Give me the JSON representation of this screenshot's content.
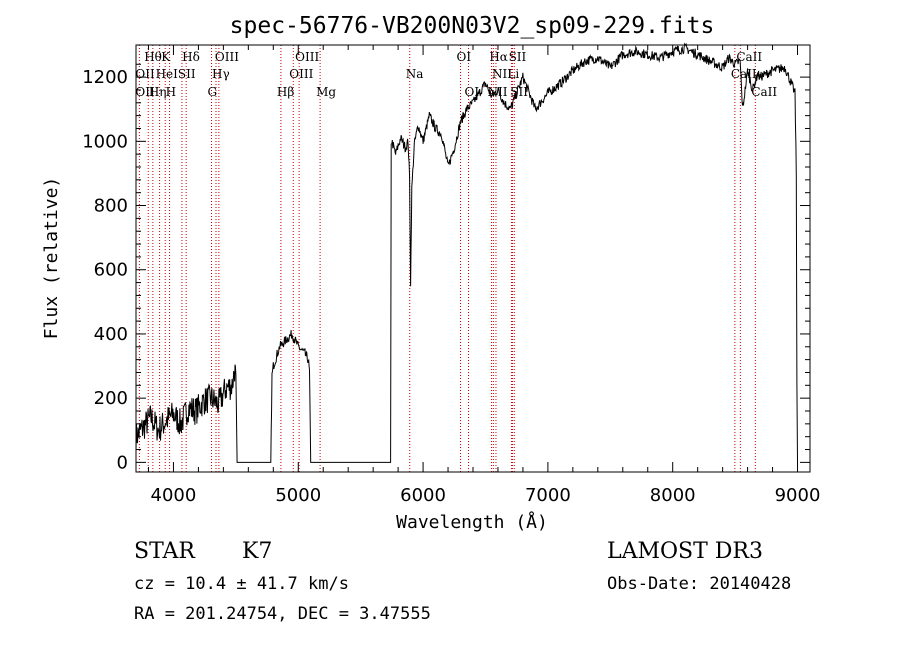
{
  "chart_data": {
    "type": "line",
    "title": "spec-56776-VB200N03V2_sp09-229.fits",
    "xlabel": "Wavelength (Å)",
    "ylabel": "Flux (relative)",
    "xlim": [
      3700,
      9100
    ],
    "ylim": [
      -30,
      1300
    ],
    "x_ticks": [
      4000,
      5000,
      6000,
      7000,
      8000,
      9000
    ],
    "y_ticks": [
      0,
      200,
      400,
      600,
      800,
      1000,
      1200
    ],
    "x_tick_labels": [
      "4000",
      "5000",
      "6000",
      "7000",
      "8000",
      "9000"
    ],
    "y_tick_labels": [
      "0",
      "200",
      "400",
      "600",
      "800",
      "1000",
      "1200"
    ],
    "grid": false,
    "series": [
      {
        "name": "flux",
        "x": [
          3700,
          3760,
          3820,
          3880,
          3940,
          4000,
          4060,
          4120,
          4180,
          4240,
          4300,
          4360,
          4420,
          4470,
          4490,
          4500,
          4510,
          4700,
          4780,
          4790,
          4800,
          4850,
          4900,
          4950,
          5000,
          5050,
          5080,
          5090,
          5100,
          5300,
          5500,
          5740,
          5745,
          5750,
          5780,
          5820,
          5860,
          5880,
          5892,
          5900,
          5910,
          5930,
          5960,
          6000,
          6050,
          6100,
          6150,
          6200,
          6250,
          6300,
          6350,
          6400,
          6450,
          6500,
          6550,
          6600,
          6650,
          6700,
          6750,
          6800,
          6900,
          7000,
          7100,
          7200,
          7300,
          7400,
          7500,
          7600,
          7700,
          7800,
          7900,
          8000,
          8100,
          8200,
          8300,
          8400,
          8450,
          8500,
          8540,
          8560,
          8600,
          8640,
          8680,
          8700,
          8800,
          8900,
          8950,
          8980,
          8990,
          8995,
          9000
        ],
        "y": [
          80,
          110,
          140,
          100,
          130,
          150,
          120,
          170,
          160,
          190,
          200,
          180,
          230,
          240,
          290,
          260,
          0,
          0,
          0,
          270,
          300,
          360,
          380,
          400,
          360,
          340,
          320,
          280,
          0,
          0,
          0,
          0,
          1000,
          1000,
          960,
          1010,
          980,
          1000,
          880,
          560,
          850,
          990,
          1050,
          1000,
          1080,
          1040,
          1020,
          920,
          980,
          1060,
          1100,
          1120,
          1150,
          1180,
          1140,
          1160,
          1120,
          1100,
          1150,
          1200,
          1100,
          1150,
          1180,
          1220,
          1250,
          1260,
          1230,
          1270,
          1280,
          1270,
          1260,
          1280,
          1290,
          1270,
          1250,
          1230,
          1260,
          1240,
          1250,
          1100,
          1220,
          1160,
          1210,
          1200,
          1220,
          1230,
          1180,
          1150,
          900,
          230,
          0
        ]
      }
    ],
    "line_labels": [
      {
        "text": "Hθ",
        "x": 3798,
        "row": 1
      },
      {
        "text": "K",
        "x": 3934,
        "row": 1
      },
      {
        "text": "Hδ",
        "x": 4102,
        "row": 1
      },
      {
        "text": "OIII",
        "x": 4364,
        "row": 1
      },
      {
        "text": "OIII",
        "x": 5007,
        "row": 1
      },
      {
        "text": "OI",
        "x": 6300,
        "row": 1
      },
      {
        "text": "Hα",
        "x": 6563,
        "row": 1
      },
      {
        "text": "SII",
        "x": 6717,
        "row": 1
      },
      {
        "text": "CaII",
        "x": 8542,
        "row": 1
      },
      {
        "text": "OII",
        "x": 3727,
        "row": 2
      },
      {
        "text": "HeI",
        "x": 3889,
        "row": 2
      },
      {
        "text": "SII",
        "x": 4068,
        "row": 2
      },
      {
        "text": "Hγ",
        "x": 4341,
        "row": 2
      },
      {
        "text": "OIII",
        "x": 4960,
        "row": 2
      },
      {
        "text": "Na",
        "x": 5893,
        "row": 2
      },
      {
        "text": "NII",
        "x": 6584,
        "row": 2
      },
      {
        "text": "Li",
        "x": 6708,
        "row": 2
      },
      {
        "text": "CaII",
        "x": 8498,
        "row": 2
      },
      {
        "text": "OII",
        "x": 3727,
        "row": 3
      },
      {
        "text": "Hη",
        "x": 3835,
        "row": 3
      },
      {
        "text": "H",
        "x": 3969,
        "row": 3
      },
      {
        "text": "G",
        "x": 4305,
        "row": 3
      },
      {
        "text": "Hβ",
        "x": 4861,
        "row": 3
      },
      {
        "text": "Mg",
        "x": 5175,
        "row": 3
      },
      {
        "text": "OI",
        "x": 6364,
        "row": 3
      },
      {
        "text": "NII",
        "x": 6548,
        "row": 3
      },
      {
        "text": "SII",
        "x": 6731,
        "row": 3
      },
      {
        "text": "CaII",
        "x": 8662,
        "row": 3
      }
    ],
    "line_markers": [
      3727,
      3798,
      3835,
      3889,
      3934,
      3969,
      4068,
      4102,
      4305,
      4341,
      4364,
      4861,
      4960,
      5007,
      5175,
      5893,
      6300,
      6364,
      6548,
      6563,
      6584,
      6708,
      6717,
      6731,
      8498,
      8542,
      8662
    ],
    "colors": {
      "spectrum": "#000000",
      "markers": "#cc0000"
    }
  },
  "info": {
    "object_class": "STAR",
    "subclass": "K7",
    "survey": "LAMOST DR3",
    "cz_line": "cz = 10.4 ± 41.7 km/s",
    "obs_date": "Obs-Date: 20140428",
    "coords": "RA = 201.24754, DEC =   3.47555"
  }
}
